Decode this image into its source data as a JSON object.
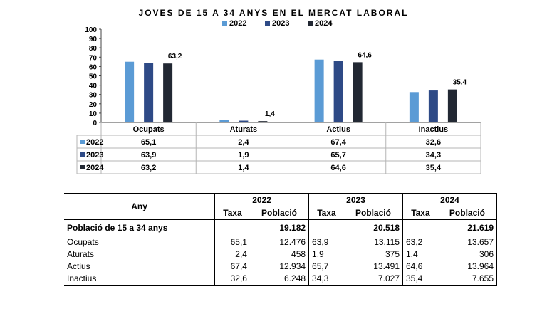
{
  "chart_data": {
    "type": "bar",
    "title": "JOVES DE 15 A 34 ANYS EN EL MERCAT LABORAL",
    "categories": [
      "Ocupats",
      "Aturats",
      "Actius",
      "Inactius"
    ],
    "series": [
      {
        "name": "2022",
        "values": [
          65.1,
          2.4,
          67.4,
          32.6
        ],
        "color": "#5b9bd5"
      },
      {
        "name": "2023",
        "values": [
          63.9,
          1.9,
          65.7,
          34.3
        ],
        "color": "#2e4a86"
      },
      {
        "name": "2024",
        "values": [
          63.2,
          1.4,
          64.6,
          35.4
        ],
        "color": "#222833"
      }
    ],
    "data_table": [
      [
        "65,1",
        "2,4",
        "67,4",
        "32,6"
      ],
      [
        "63,9",
        "1,9",
        "65,7",
        "34,3"
      ],
      [
        "63,2",
        "1,4",
        "64,6",
        "35,4"
      ]
    ],
    "labeled_series_index": 2,
    "bar_labels": [
      "63,2",
      "1,4",
      "64,6",
      "35,4"
    ],
    "ylim": [
      0,
      100
    ],
    "yticks": [
      0,
      10,
      20,
      30,
      40,
      50,
      60,
      70,
      80,
      90,
      100
    ],
    "grid": false,
    "legend_position": "top",
    "xlabel": "",
    "ylabel": ""
  },
  "table": {
    "header_any": "Any",
    "years": [
      "2022",
      "2023",
      "2024"
    ],
    "taxa_label": "Taxa",
    "poblacio_label": "Població",
    "total_row": {
      "label": "Població de 15 a 34 anys",
      "values": [
        "19.182",
        "20.518",
        "21.619"
      ]
    },
    "rows": [
      {
        "label": "Ocupats",
        "cells": [
          "65,1",
          "12.476",
          "63,9",
          "13.115",
          "63,2",
          "13.657"
        ]
      },
      {
        "label": "Aturats",
        "cells": [
          "2,4",
          "458",
          "1,9",
          "375",
          "1,4",
          "306"
        ]
      },
      {
        "label": "Actius",
        "cells": [
          "67,4",
          "12.934",
          "65,7",
          "13.491",
          "64,6",
          "13.964"
        ]
      },
      {
        "label": "Inactius",
        "cells": [
          "32,6",
          "6.248",
          "34,3",
          "7.027",
          "35,4",
          "7.655"
        ]
      }
    ]
  }
}
